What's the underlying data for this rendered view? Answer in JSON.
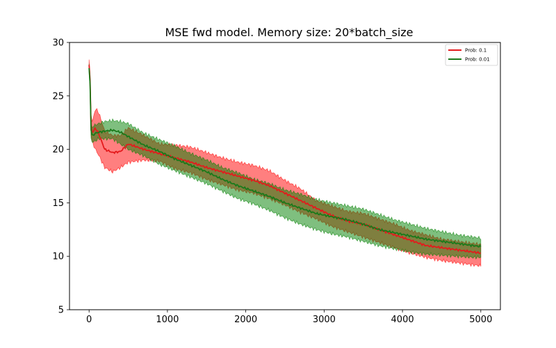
{
  "chart_data": {
    "type": "line",
    "title": "MSE fwd model. Memory size: 20*batch_size",
    "xlabel": "",
    "ylabel": "",
    "xlim": [
      -250,
      5250
    ],
    "ylim": [
      5,
      30
    ],
    "xticks": [
      0,
      1000,
      2000,
      3000,
      4000,
      5000
    ],
    "yticks": [
      5,
      10,
      15,
      20,
      25,
      30
    ],
    "legend_position": "top-right",
    "series": [
      {
        "name": "Prob: 0.1",
        "color": "#e41a1c",
        "band_color": "#ff0000",
        "x": [
          0,
          10,
          20,
          40,
          80,
          120,
          200,
          300,
          400,
          500,
          700,
          900,
          1100,
          1300,
          1500,
          1700,
          1900,
          2100,
          2300,
          2500,
          2700,
          2900,
          3100,
          3300,
          3500,
          3700,
          3900,
          4100,
          4300,
          4500,
          4700,
          4900,
          5000
        ],
        "mean": [
          27.9,
          27.8,
          22.5,
          21.5,
          22.0,
          21.5,
          20.0,
          19.7,
          19.8,
          20.5,
          20.0,
          19.6,
          19.2,
          18.8,
          18.3,
          17.9,
          17.5,
          17.1,
          16.6,
          15.9,
          15.2,
          14.5,
          13.8,
          13.3,
          13.0,
          12.5,
          12.0,
          11.5,
          11.0,
          10.8,
          10.6,
          10.4,
          10.3
        ],
        "lower": [
          27.5,
          27.4,
          21.5,
          20.8,
          20.0,
          19.5,
          18.3,
          17.9,
          18.3,
          18.8,
          19.0,
          18.9,
          18.2,
          17.8,
          17.2,
          16.7,
          16.2,
          15.9,
          15.4,
          14.8,
          14.1,
          13.5,
          12.8,
          12.3,
          11.8,
          11.3,
          10.8,
          10.3,
          9.9,
          9.6,
          9.4,
          9.2,
          9.1
        ],
        "upper": [
          28.4,
          28.3,
          23.5,
          22.5,
          23.8,
          23.5,
          21.7,
          21.3,
          21.3,
          22.0,
          21.3,
          20.5,
          20.4,
          20.2,
          19.7,
          19.2,
          18.8,
          18.5,
          18.0,
          17.1,
          16.3,
          15.2,
          14.7,
          14.2,
          14.0,
          13.5,
          13.0,
          12.4,
          12.0,
          11.6,
          11.4,
          11.2,
          11.1
        ]
      },
      {
        "name": "Prob: 0.01",
        "color": "#1a7a1a",
        "band_color": "#008000",
        "x": [
          0,
          10,
          20,
          40,
          80,
          120,
          200,
          300,
          400,
          500,
          700,
          900,
          1100,
          1300,
          1500,
          1700,
          1900,
          2100,
          2300,
          2500,
          2700,
          2900,
          3100,
          3300,
          3500,
          3700,
          3900,
          4100,
          4300,
          4500,
          4700,
          4900,
          5000
        ],
        "mean": [
          27.6,
          27.5,
          22.0,
          21.3,
          21.5,
          21.6,
          21.7,
          21.8,
          21.6,
          21.2,
          20.4,
          19.8,
          19.1,
          18.5,
          17.9,
          17.2,
          16.6,
          16.1,
          15.6,
          15.0,
          14.5,
          14.0,
          13.7,
          13.4,
          13.0,
          12.5,
          12.2,
          11.9,
          11.6,
          11.4,
          11.2,
          11.0,
          10.9
        ],
        "lower": [
          27.2,
          27.1,
          21.2,
          20.6,
          20.8,
          21.0,
          21.0,
          21.0,
          20.5,
          20.0,
          19.4,
          18.6,
          18.0,
          17.4,
          16.8,
          16.1,
          15.4,
          14.9,
          14.3,
          13.6,
          13.0,
          12.5,
          12.1,
          11.8,
          11.4,
          11.0,
          10.7,
          10.4,
          10.2,
          10.1,
          10.0,
          9.9,
          9.9
        ],
        "upper": [
          28.0,
          27.9,
          22.6,
          22.0,
          22.3,
          22.4,
          22.6,
          22.7,
          22.6,
          22.4,
          21.5,
          20.9,
          20.3,
          19.6,
          19.0,
          18.3,
          17.8,
          17.2,
          16.8,
          16.2,
          15.8,
          15.3,
          15.0,
          14.7,
          14.4,
          13.9,
          13.4,
          13.0,
          12.6,
          12.3,
          12.0,
          11.8,
          11.7
        ]
      }
    ]
  }
}
